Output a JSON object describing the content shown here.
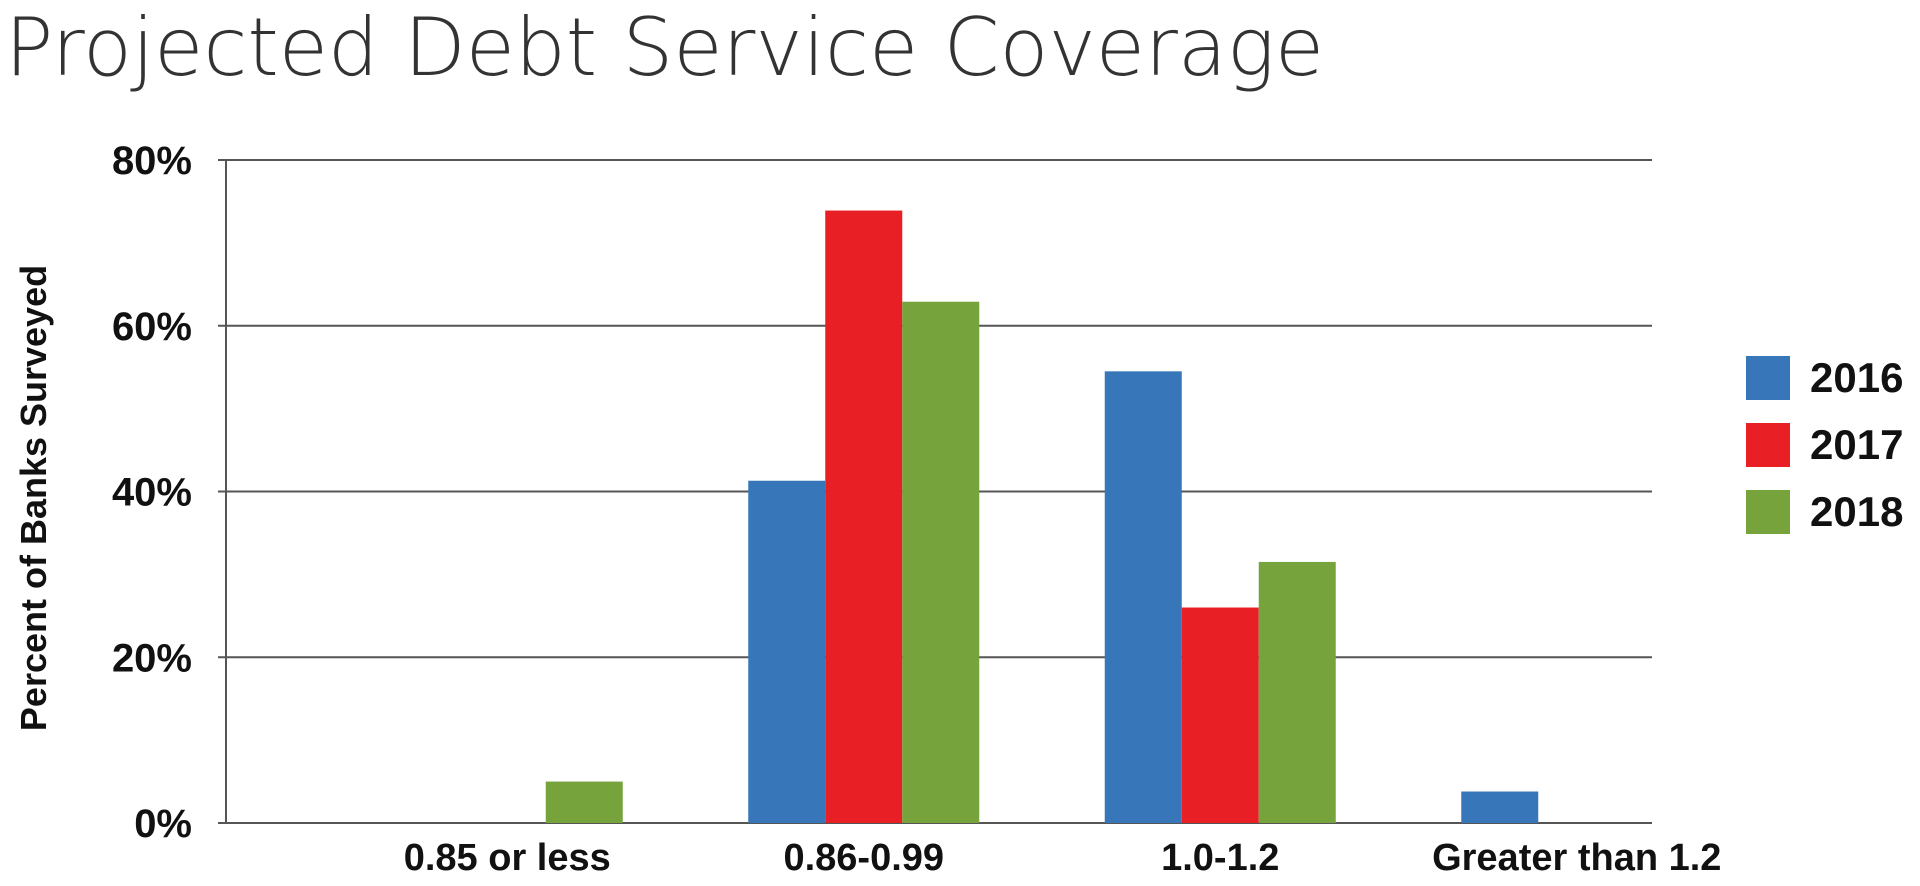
{
  "chart_data": {
    "type": "bar",
    "title": "Projected Debt Service Coverage",
    "ylabel": "Percent of Banks Surveyed",
    "xlabel": "",
    "ylim": [
      0,
      80
    ],
    "yticks": [
      0,
      20,
      40,
      60,
      80
    ],
    "ytick_labels": [
      "0%",
      "20%",
      "40%",
      "60%",
      "80%"
    ],
    "categories": [
      "0.85 or less",
      "0.86-0.99",
      "1.0-1.2",
      "Greater than 1.2"
    ],
    "series": [
      {
        "name": "2016",
        "color": "#3777b9",
        "values": [
          0,
          41.3,
          54.5,
          3.8
        ]
      },
      {
        "name": "2017",
        "color": "#e81f25",
        "values": [
          0,
          73.9,
          26.0,
          0
        ]
      },
      {
        "name": "2018",
        "color": "#76a33c",
        "values": [
          5.0,
          62.9,
          31.5,
          0
        ]
      }
    ],
    "grid": true,
    "legend_position": "right"
  }
}
